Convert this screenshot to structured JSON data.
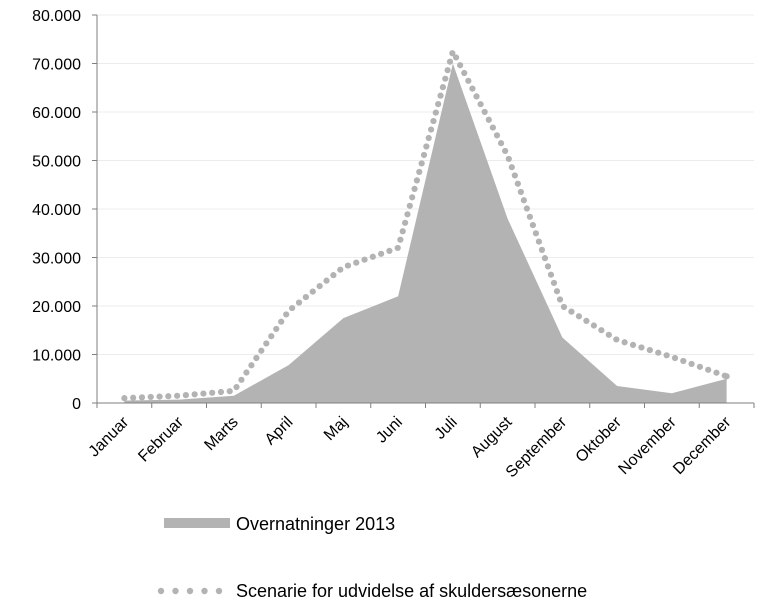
{
  "chart_data": {
    "type": "area",
    "categories": [
      "Januar",
      "Februar",
      "Marts",
      "April",
      "Maj",
      "Juni",
      "Juli",
      "August",
      "September",
      "Oktober",
      "November",
      "December"
    ],
    "ylim": [
      0,
      80000
    ],
    "yticks": [
      "0",
      "10.000",
      "20.000",
      "30.000",
      "40.000",
      "50.000",
      "60.000",
      "70.000",
      "80.000"
    ],
    "grid": true,
    "legend_position": "bottom",
    "series": [
      {
        "name": "Overnatninger 2013",
        "style": "area",
        "color": "#b3b3b3",
        "values": [
          500,
          700,
          1500,
          7800,
          17500,
          22000,
          70000,
          38000,
          13500,
          3500,
          2000,
          5000
        ]
      },
      {
        "name": "Scenarie for udvidelse af skuldersæsonerne",
        "style": "dotted-line",
        "color": "#b3b3b3",
        "values": [
          1000,
          1500,
          2500,
          19000,
          28000,
          32000,
          72500,
          51000,
          20000,
          13000,
          9500,
          5500
        ]
      }
    ]
  }
}
